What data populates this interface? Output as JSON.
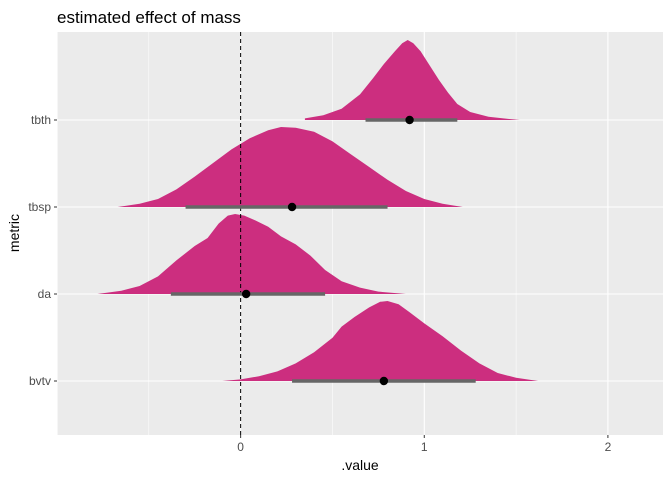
{
  "chart_data": {
    "type": "halfeye",
    "title": "estimated effect of mass",
    "xlabel": ".value",
    "ylabel": "metric",
    "xlim": [
      -1.0,
      2.3
    ],
    "x_ticks": [
      0,
      1,
      2
    ],
    "x_tick_labels": [
      "0",
      "1",
      "2"
    ],
    "categories": [
      "tbth",
      "tbsp",
      "da",
      "bvtv"
    ],
    "reference_line": {
      "x": 0,
      "style": "dashed"
    },
    "grid": true,
    "fill_color": "#cc2e7f",
    "interval_color": "#666666",
    "point_color": "#000000",
    "panel_background": "#ebebeb",
    "series": [
      {
        "category": "tbth",
        "point": 0.92,
        "interval": [
          0.68,
          1.18
        ],
        "range": [
          0.35,
          1.52
        ],
        "density": [
          [
            0.35,
            0.02
          ],
          [
            0.45,
            0.06
          ],
          [
            0.55,
            0.14
          ],
          [
            0.65,
            0.32
          ],
          [
            0.72,
            0.52
          ],
          [
            0.78,
            0.7
          ],
          [
            0.84,
            0.86
          ],
          [
            0.88,
            0.96
          ],
          [
            0.91,
            1.0
          ],
          [
            0.94,
            0.96
          ],
          [
            0.98,
            0.86
          ],
          [
            1.03,
            0.68
          ],
          [
            1.08,
            0.5
          ],
          [
            1.13,
            0.34
          ],
          [
            1.18,
            0.2
          ],
          [
            1.25,
            0.1
          ],
          [
            1.35,
            0.04
          ],
          [
            1.45,
            0.015
          ],
          [
            1.52,
            0.0
          ]
        ]
      },
      {
        "category": "tbsp",
        "point": 0.28,
        "interval": [
          -0.3,
          0.8
        ],
        "range": [
          -0.67,
          1.21
        ],
        "density": [
          [
            -0.67,
            0.0
          ],
          [
            -0.55,
            0.04
          ],
          [
            -0.45,
            0.1
          ],
          [
            -0.35,
            0.22
          ],
          [
            -0.25,
            0.38
          ],
          [
            -0.15,
            0.55
          ],
          [
            -0.05,
            0.72
          ],
          [
            0.05,
            0.86
          ],
          [
            0.15,
            0.96
          ],
          [
            0.22,
            1.0
          ],
          [
            0.3,
            0.99
          ],
          [
            0.4,
            0.94
          ],
          [
            0.5,
            0.82
          ],
          [
            0.6,
            0.66
          ],
          [
            0.7,
            0.5
          ],
          [
            0.8,
            0.34
          ],
          [
            0.9,
            0.2
          ],
          [
            1.0,
            0.1
          ],
          [
            1.1,
            0.04
          ],
          [
            1.21,
            0.0
          ]
        ]
      },
      {
        "category": "da",
        "point": 0.03,
        "interval": [
          -0.38,
          0.46
        ],
        "range": [
          -0.78,
          0.9
        ],
        "density": [
          [
            -0.78,
            0.0
          ],
          [
            -0.65,
            0.04
          ],
          [
            -0.55,
            0.1
          ],
          [
            -0.45,
            0.22
          ],
          [
            -0.35,
            0.42
          ],
          [
            -0.25,
            0.6
          ],
          [
            -0.18,
            0.7
          ],
          [
            -0.12,
            0.88
          ],
          [
            -0.07,
            0.98
          ],
          [
            -0.03,
            1.0
          ],
          [
            0.02,
            0.98
          ],
          [
            0.08,
            0.92
          ],
          [
            0.15,
            0.84
          ],
          [
            0.22,
            0.72
          ],
          [
            0.3,
            0.62
          ],
          [
            0.38,
            0.48
          ],
          [
            0.46,
            0.3
          ],
          [
            0.55,
            0.16
          ],
          [
            0.65,
            0.08
          ],
          [
            0.75,
            0.03
          ],
          [
            0.9,
            0.0
          ]
        ]
      },
      {
        "category": "bvtv",
        "point": 0.78,
        "interval": [
          0.28,
          1.28
        ],
        "range": [
          -0.1,
          1.62
        ],
        "density": [
          [
            -0.1,
            0.0
          ],
          [
            0.0,
            0.02
          ],
          [
            0.1,
            0.06
          ],
          [
            0.2,
            0.12
          ],
          [
            0.3,
            0.22
          ],
          [
            0.4,
            0.36
          ],
          [
            0.5,
            0.54
          ],
          [
            0.55,
            0.68
          ],
          [
            0.62,
            0.8
          ],
          [
            0.7,
            0.92
          ],
          [
            0.76,
            0.99
          ],
          [
            0.8,
            1.0
          ],
          [
            0.86,
            0.96
          ],
          [
            0.92,
            0.86
          ],
          [
            1.0,
            0.72
          ],
          [
            1.1,
            0.56
          ],
          [
            1.2,
            0.38
          ],
          [
            1.3,
            0.22
          ],
          [
            1.4,
            0.1
          ],
          [
            1.5,
            0.04
          ],
          [
            1.62,
            0.0
          ]
        ]
      }
    ]
  }
}
